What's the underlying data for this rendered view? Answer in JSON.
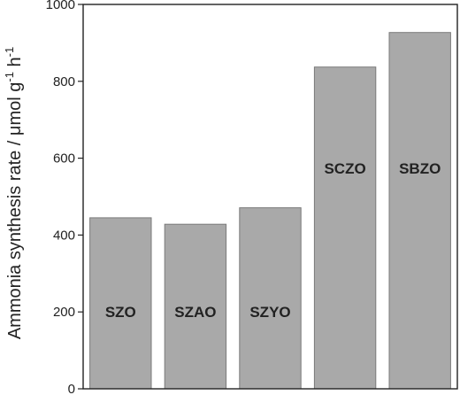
{
  "chart_data": {
    "type": "bar",
    "title": "",
    "xlabel": "",
    "ylabel": {
      "prefix": "Ammonia synthesis rate / μmol g",
      "exp1": "-1",
      "mid": " h",
      "exp2": "-1"
    },
    "categories": [
      "SZO",
      "SZAO",
      "SZYO",
      "SCZO",
      "SBZO"
    ],
    "values": [
      445,
      428,
      471,
      837,
      927
    ],
    "ylim": [
      0,
      1000
    ],
    "yticks": [
      0,
      200,
      400,
      600,
      800,
      1000
    ],
    "grid": false,
    "legend": "none",
    "bar_color": "#a9a9a9",
    "bar_edge_color": "#7a7a7a",
    "axis_color": "#222222"
  }
}
